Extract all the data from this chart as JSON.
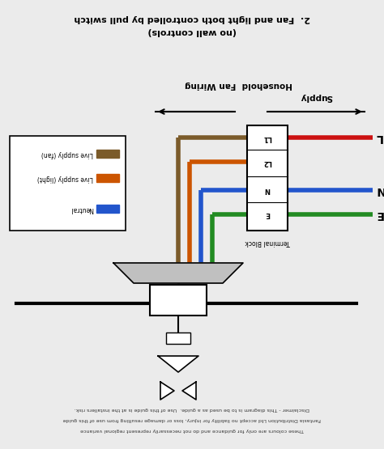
{
  "bg_color": "#ebebeb",
  "title_line1": "2.  Fan and light both controlled by pull switch",
  "title_line2": "(no wall controls)",
  "household_label": "Household  Fan Wiring",
  "supply_label": "Supply",
  "terminal_label": "Terminal Block",
  "terminal_labels": [
    "L1",
    "L2",
    "N",
    "E"
  ],
  "legend_items": [
    {
      "label": "Live supply (fan)",
      "color": "#7B5B2A"
    },
    {
      "label": "Live supply (light)",
      "color": "#CC5500"
    },
    {
      "label": "Neutral",
      "color": "#2255CC"
    }
  ],
  "wire_colors": {
    "brown": "#7B5B2A",
    "orange": "#CC5500",
    "blue": "#2255CC",
    "green": "#228B22",
    "red": "#CC1111"
  },
  "disclaimer_lines": [
    "Disclaimer - This diagram is to be used as a guide.  Use of this guide is at the installers risk.",
    "Fantasia Distribution Ltd accept no liability for injury, loss or damage resulting from use of this guide",
    "These colours are only for guidance and do not necessarily represent regional variance"
  ]
}
